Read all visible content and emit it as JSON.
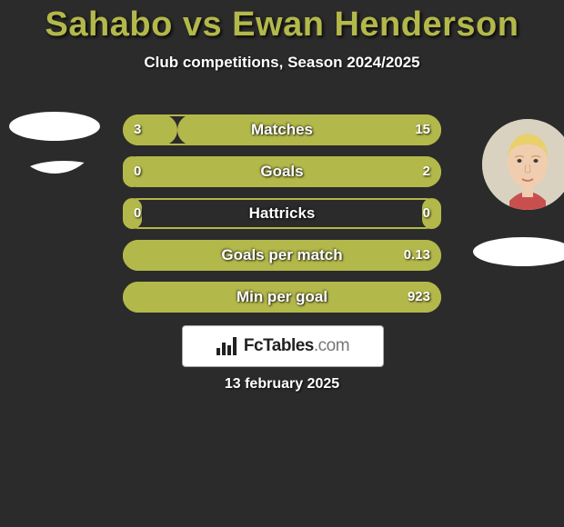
{
  "title": "Sahabo vs Ewan Henderson",
  "subtitle": "Club competitions, Season 2024/2025",
  "date": "13 february 2025",
  "branding": {
    "site_name": "FcTables",
    "site_suffix": ".com",
    "icon_name": "bars-icon"
  },
  "colors": {
    "accent": "#b3b84a",
    "background": "#2b2b2b",
    "text": "#ffffff",
    "title_color": "#b3b84a"
  },
  "players": {
    "left": {
      "name": "Sahabo"
    },
    "right": {
      "name": "Ewan Henderson"
    }
  },
  "stats": [
    {
      "label": "Matches",
      "left_val": "3",
      "right_val": "15",
      "left_pct": 17,
      "right_pct": 83
    },
    {
      "label": "Goals",
      "left_val": "0",
      "right_val": "2",
      "left_pct": 6,
      "right_pct": 100
    },
    {
      "label": "Hattricks",
      "left_val": "0",
      "right_val": "0",
      "left_pct": 6,
      "right_pct": 6
    },
    {
      "label": "Goals per match",
      "left_val": "",
      "right_val": "0.13",
      "left_pct": 0,
      "right_pct": 100
    },
    {
      "label": "Min per goal",
      "left_val": "",
      "right_val": "923",
      "left_pct": 0,
      "right_pct": 100
    }
  ]
}
